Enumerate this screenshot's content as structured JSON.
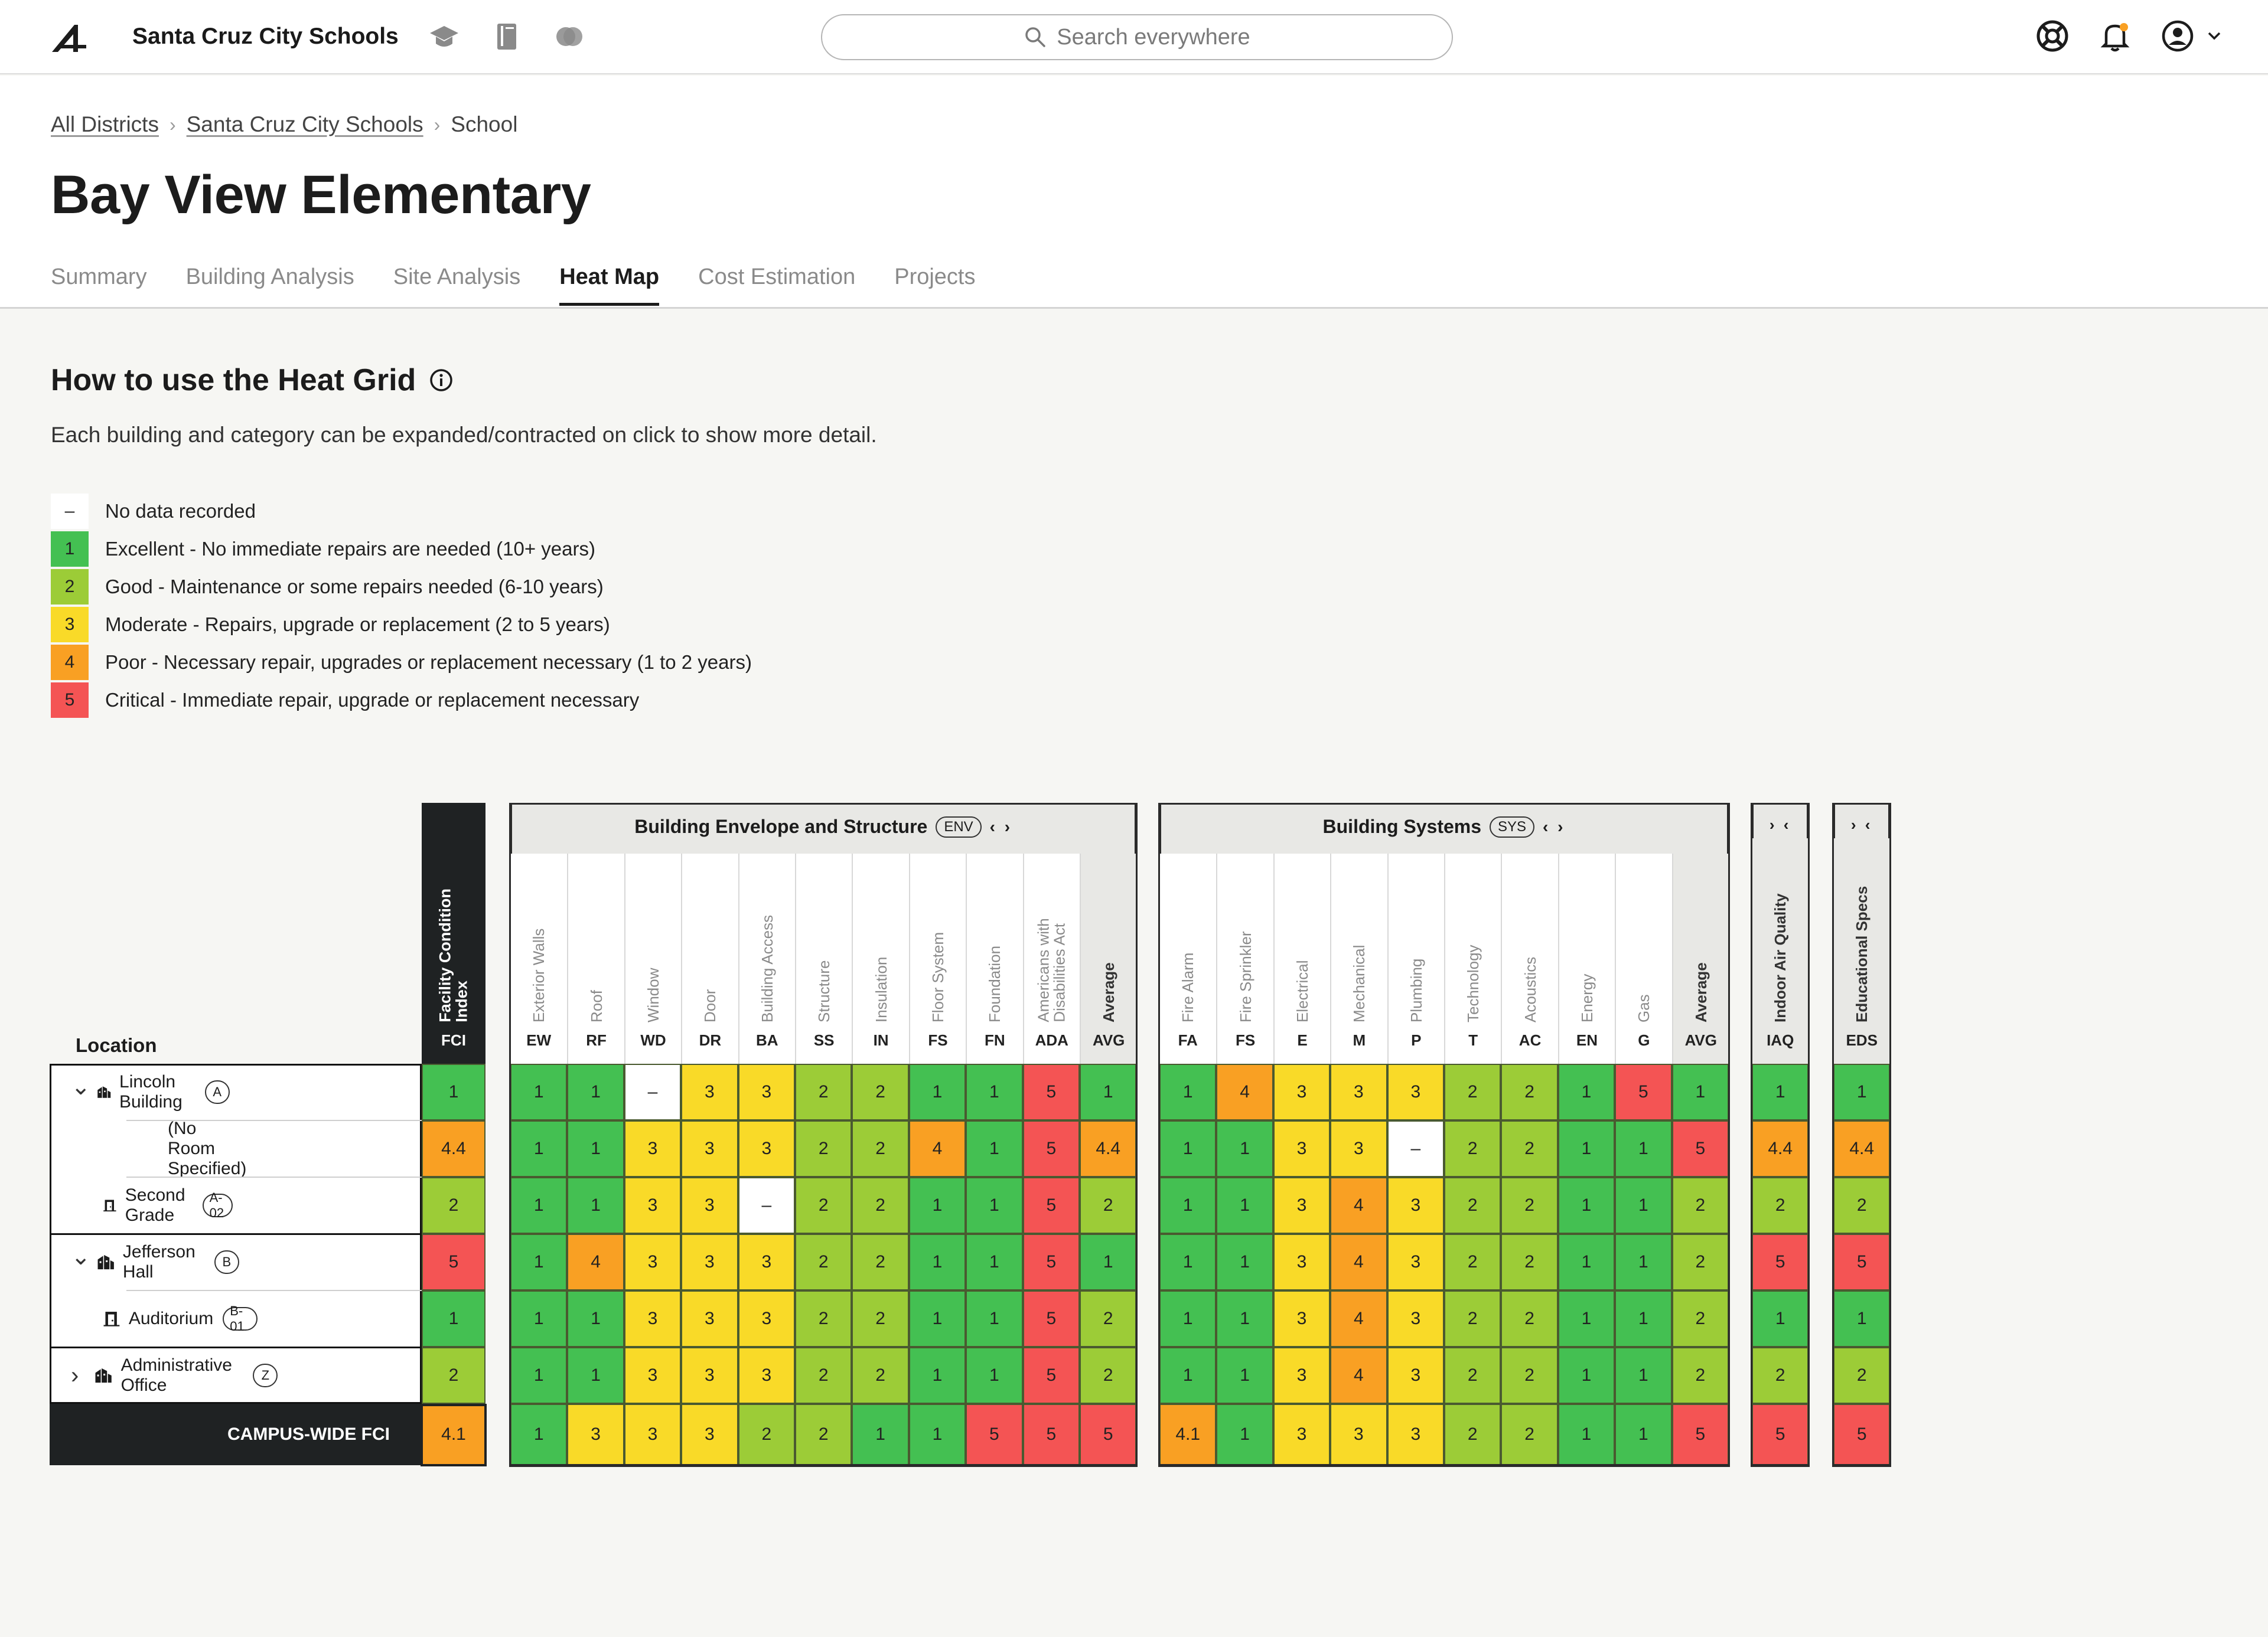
{
  "topbar": {
    "district_name": "Santa Cruz City Schools",
    "search_placeholder": "Search everywhere",
    "icons": [
      "graduation-cap-icon",
      "book-icon",
      "toggle-icon",
      "help-icon",
      "bell-icon",
      "user-icon"
    ]
  },
  "breadcrumb": {
    "all": "All Districts",
    "district": "Santa Cruz City Schools",
    "current": "School"
  },
  "page": {
    "title": "Bay View Elementary"
  },
  "tabs": [
    "Summary",
    "Building Analysis",
    "Site Analysis",
    "Heat Map",
    "Cost Estimation",
    "Projects"
  ],
  "active_tab": "Heat Map",
  "howto": {
    "title": "How to use the Heat Grid",
    "description": "Each building and category can be expanded/contracted on click to show more detail."
  },
  "legend": [
    {
      "value": "–",
      "label": "No data recorded",
      "color": "#ffffff"
    },
    {
      "value": "1",
      "label": "Excellent - No immediate repairs are needed (10+ years)",
      "color": "#44c052"
    },
    {
      "value": "2",
      "label": "Good - Maintenance or some repairs needed (6-10 years)",
      "color": "#9ccc37"
    },
    {
      "value": "3",
      "label": "Moderate - Repairs, upgrade or replacement (2 to 5 years)",
      "color": "#f9da28"
    },
    {
      "value": "4",
      "label": "Poor - Necessary repair, upgrades or replacement necessary (1 to 2 years)",
      "color": "#f9a023"
    },
    {
      "value": "5",
      "label": "Critical - Immediate repair, upgrade or replacement necessary",
      "color": "#f45454"
    }
  ],
  "grid": {
    "location_header": "Location",
    "campus_label": "CAMPUS-WIDE FCI",
    "fci": {
      "name": "Facility Condition Index",
      "abbr": "FCI"
    },
    "groups": [
      {
        "title": "Building Envelope and Structure",
        "badge": "ENV",
        "toggle": "‹ ›",
        "columns": [
          {
            "name": "Exterior Walls",
            "abbr": "EW"
          },
          {
            "name": "Roof",
            "abbr": "RF"
          },
          {
            "name": "Window",
            "abbr": "WD"
          },
          {
            "name": "Door",
            "abbr": "DR"
          },
          {
            "name": "Building Access",
            "abbr": "BA"
          },
          {
            "name": "Structure",
            "abbr": "SS"
          },
          {
            "name": "Insulation",
            "abbr": "IN"
          },
          {
            "name": "Floor System",
            "abbr": "FS"
          },
          {
            "name": "Foundation",
            "abbr": "FN"
          },
          {
            "name": "Americans with Disabilities Act",
            "abbr": "ADA"
          },
          {
            "name": "Average",
            "abbr": "AVG",
            "avg": true
          }
        ]
      },
      {
        "title": "Building Systems",
        "badge": "SYS",
        "toggle": "‹ ›",
        "columns": [
          {
            "name": "Fire Alarm",
            "abbr": "FA"
          },
          {
            "name": "Fire Sprinkler",
            "abbr": "FS"
          },
          {
            "name": "Electrical",
            "abbr": "E"
          },
          {
            "name": "Mechanical",
            "abbr": "M"
          },
          {
            "name": "Plumbing",
            "abbr": "P"
          },
          {
            "name": "Technology",
            "abbr": "T"
          },
          {
            "name": "Acoustics",
            "abbr": "AC"
          },
          {
            "name": "Energy",
            "abbr": "EN"
          },
          {
            "name": "Gas",
            "abbr": "G"
          },
          {
            "name": "Average",
            "abbr": "AVG",
            "avg": true
          }
        ]
      },
      {
        "title": "",
        "badge": "",
        "toggle": "› ‹",
        "columns": [
          {
            "name": "Indoor Air Quality",
            "abbr": "IAQ",
            "dark": true
          }
        ]
      },
      {
        "title": "",
        "badge": "",
        "toggle": "› ‹",
        "columns": [
          {
            "name": "Educational Specs",
            "abbr": "EDS",
            "dark": true
          }
        ]
      }
    ],
    "rows": [
      {
        "label": "Lincoln Building",
        "badge": "A",
        "level": 0,
        "expanded": true,
        "icon": "building-icon",
        "fci": "1",
        "values": [
          [
            "1",
            "1",
            "–",
            "3",
            "3",
            "2",
            "2",
            "1",
            "1",
            "5",
            "1"
          ],
          [
            "1",
            "4",
            "3",
            "3",
            "3",
            "2",
            "2",
            "1",
            "5",
            "1"
          ],
          [
            "1"
          ],
          [
            "1"
          ]
        ]
      },
      {
        "label": "(No Room Specified)",
        "badge": "",
        "level": 1,
        "icon": "",
        "fci": "4.4",
        "values": [
          [
            "1",
            "1",
            "3",
            "3",
            "3",
            "2",
            "2",
            "4",
            "1",
            "5",
            "4.4"
          ],
          [
            "1",
            "1",
            "3",
            "3",
            "–",
            "2",
            "2",
            "1",
            "1",
            "5"
          ],
          [
            "4.4"
          ],
          [
            "4.4"
          ]
        ]
      },
      {
        "label": "Second Grade",
        "badge": "A-02",
        "level": 1,
        "icon": "room-icon",
        "fci": "2",
        "values": [
          [
            "1",
            "1",
            "3",
            "3",
            "–",
            "2",
            "2",
            "1",
            "1",
            "5",
            "2"
          ],
          [
            "1",
            "1",
            "3",
            "4",
            "3",
            "2",
            "2",
            "1",
            "1",
            "2"
          ],
          [
            "2"
          ],
          [
            "2"
          ]
        ]
      },
      {
        "label": "Jefferson Hall",
        "badge": "B",
        "level": 0,
        "expanded": true,
        "icon": "building-icon",
        "fci": "5",
        "values": [
          [
            "1",
            "4",
            "3",
            "3",
            "3",
            "2",
            "2",
            "1",
            "1",
            "5",
            "1"
          ],
          [
            "1",
            "1",
            "3",
            "4",
            "3",
            "2",
            "2",
            "1",
            "1",
            "2"
          ],
          [
            "5"
          ],
          [
            "5"
          ]
        ]
      },
      {
        "label": "Auditorium",
        "badge": "B-01",
        "level": 1,
        "icon": "room-icon",
        "fci": "1",
        "values": [
          [
            "1",
            "1",
            "3",
            "3",
            "3",
            "2",
            "2",
            "1",
            "1",
            "5",
            "2"
          ],
          [
            "1",
            "1",
            "3",
            "4",
            "3",
            "2",
            "2",
            "1",
            "1",
            "2"
          ],
          [
            "1"
          ],
          [
            "1"
          ]
        ]
      },
      {
        "label": "Administrative Office",
        "badge": "Z",
        "level": 0,
        "expanded": false,
        "icon": "building-icon",
        "fci": "2",
        "values": [
          [
            "1",
            "1",
            "3",
            "3",
            "3",
            "2",
            "2",
            "1",
            "1",
            "5",
            "2"
          ],
          [
            "1",
            "1",
            "3",
            "4",
            "3",
            "2",
            "2",
            "1",
            "1",
            "2"
          ],
          [
            "2"
          ],
          [
            "2"
          ]
        ]
      }
    ],
    "campus": {
      "fci": "4.1",
      "values": [
        [
          "1",
          "3",
          "3",
          "3",
          "2",
          "2",
          "1",
          "1",
          "5",
          "5",
          "5"
        ],
        [
          "4.1",
          "1",
          "3",
          "3",
          "3",
          "2",
          "2",
          "1",
          "1",
          "5"
        ],
        [
          "5"
        ],
        [
          "5"
        ]
      ]
    }
  }
}
